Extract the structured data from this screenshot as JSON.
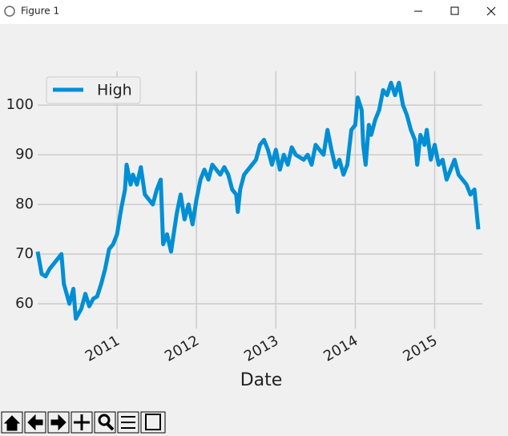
{
  "window": {
    "title": "Figure 1"
  },
  "chart_data": {
    "type": "line",
    "xlabel": "Date",
    "x": [
      2010.0,
      2010.05,
      2010.1,
      2010.15,
      2010.2,
      2010.25,
      2010.3,
      2010.33,
      2010.4,
      2010.45,
      2010.48,
      2010.55,
      2010.6,
      2010.65,
      2010.7,
      2010.75,
      2010.8,
      2010.85,
      2010.9,
      2010.95,
      2011.0,
      2011.05,
      2011.1,
      2011.12,
      2011.17,
      2011.2,
      2011.25,
      2011.3,
      2011.35,
      2011.4,
      2011.45,
      2011.5,
      2011.55,
      2011.58,
      2011.63,
      2011.68,
      2011.75,
      2011.8,
      2011.85,
      2011.9,
      2011.95,
      2012.0,
      2012.05,
      2012.1,
      2012.15,
      2012.2,
      2012.3,
      2012.35,
      2012.4,
      2012.45,
      2012.5,
      2012.52,
      2012.55,
      2012.6,
      2012.65,
      2012.7,
      2012.75,
      2012.8,
      2012.85,
      2012.9,
      2012.95,
      2013.0,
      2013.05,
      2013.1,
      2013.15,
      2013.2,
      2013.25,
      2013.35,
      2013.4,
      2013.45,
      2013.5,
      2013.55,
      2013.6,
      2013.65,
      2013.7,
      2013.75,
      2013.8,
      2013.85,
      2013.9,
      2013.95,
      2014.0,
      2014.03,
      2014.08,
      2014.1,
      2014.13,
      2014.17,
      2014.2,
      2014.25,
      2014.3,
      2014.35,
      2014.4,
      2014.45,
      2014.5,
      2014.55,
      2014.6,
      2014.65,
      2014.7,
      2014.75,
      2014.78,
      2014.82,
      2014.87,
      2014.9,
      2014.95,
      2015.0,
      2015.05,
      2015.1,
      2015.15,
      2015.2,
      2015.25,
      2015.3,
      2015.35,
      2015.4,
      2015.45,
      2015.5,
      2015.55
    ],
    "series": [
      {
        "name": "High",
        "color": "#008fd5",
        "values": [
          70.5,
          66,
          65.5,
          67,
          68,
          69,
          70,
          64,
          60,
          63,
          57,
          59,
          62,
          59.5,
          61,
          61.5,
          64,
          67,
          71,
          72,
          74,
          79,
          83,
          88,
          84,
          86,
          84,
          87.5,
          82,
          81,
          80,
          83,
          85,
          72,
          74,
          70.5,
          78,
          82,
          77,
          80,
          76,
          81,
          85,
          87,
          85,
          88,
          86,
          87.5,
          86,
          83,
          82,
          78.5,
          83,
          86,
          87,
          88,
          89,
          92,
          93,
          91,
          88,
          91,
          87,
          90,
          88,
          91.5,
          90,
          89,
          90,
          88,
          92,
          91,
          90,
          95,
          91,
          87.5,
          89,
          86,
          88,
          95,
          96,
          101.5,
          99,
          92,
          88,
          96,
          94,
          97,
          99,
          103,
          102,
          104.5,
          102,
          104.5,
          100,
          98,
          95,
          93,
          88,
          94,
          92,
          95,
          89,
          92,
          88,
          89,
          85,
          87,
          89,
          86,
          85,
          84,
          82,
          83,
          75
        ]
      }
    ],
    "xlim": [
      2010.0,
      2015.6
    ],
    "xticks": [
      2011,
      2012,
      2013,
      2014,
      2015
    ],
    "ylim": [
      55,
      106.8
    ],
    "yticks": [
      60,
      70,
      80,
      90,
      100
    ],
    "grid": true,
    "legend": "upper left"
  }
}
